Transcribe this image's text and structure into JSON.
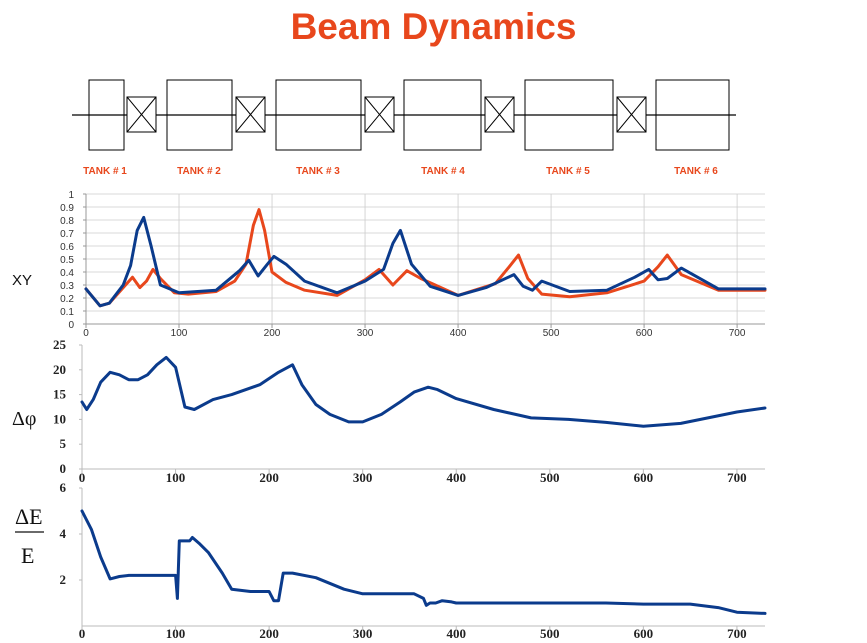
{
  "title": "Beam Dynamics",
  "colors": {
    "title": "#e8471c",
    "red": "#e8471c",
    "blue": "#0b3b8c",
    "grid": "#cccccc"
  },
  "tank_labels": [
    "TANK # 1",
    "TANK # 2",
    "TANK # 3",
    "TANK # 4",
    "TANK # 5",
    "TANK # 6"
  ],
  "chart_data": [
    {
      "type": "line",
      "ylabel": "XY",
      "xlim": [
        0,
        730
      ],
      "ylim": [
        0,
        1
      ],
      "grid": true,
      "xticks": [
        0,
        100,
        200,
        300,
        400,
        500,
        600,
        700
      ],
      "yticks": [
        0,
        0.1,
        0.2,
        0.3,
        0.4,
        0.5,
        0.6,
        0.7,
        0.8,
        0.9,
        1
      ],
      "series": [
        {
          "color": "red",
          "x": [
            0,
            15,
            25,
            40,
            50,
            58,
            65,
            72,
            80,
            95,
            110,
            140,
            160,
            172,
            180,
            186,
            192,
            200,
            215,
            235,
            270,
            300,
            315,
            330,
            345,
            360,
            400,
            440,
            455,
            465,
            475,
            490,
            520,
            560,
            600,
            615,
            625,
            640,
            680,
            730
          ],
          "y": [
            0.27,
            0.14,
            0.16,
            0.28,
            0.36,
            0.28,
            0.33,
            0.42,
            0.35,
            0.24,
            0.23,
            0.25,
            0.33,
            0.46,
            0.76,
            0.88,
            0.72,
            0.4,
            0.32,
            0.26,
            0.22,
            0.34,
            0.42,
            0.3,
            0.41,
            0.35,
            0.22,
            0.31,
            0.44,
            0.53,
            0.35,
            0.23,
            0.21,
            0.24,
            0.33,
            0.44,
            0.53,
            0.38,
            0.26,
            0.26
          ]
        },
        {
          "color": "blue",
          "x": [
            0,
            15,
            25,
            40,
            48,
            55,
            62,
            70,
            80,
            100,
            140,
            165,
            175,
            185,
            195,
            202,
            215,
            235,
            270,
            300,
            320,
            330,
            338,
            350,
            370,
            400,
            430,
            460,
            470,
            480,
            490,
            520,
            560,
            590,
            605,
            615,
            625,
            640,
            680,
            730
          ],
          "y": [
            0.27,
            0.14,
            0.16,
            0.3,
            0.45,
            0.72,
            0.82,
            0.6,
            0.3,
            0.24,
            0.26,
            0.41,
            0.49,
            0.37,
            0.46,
            0.52,
            0.46,
            0.33,
            0.24,
            0.33,
            0.42,
            0.62,
            0.72,
            0.46,
            0.29,
            0.22,
            0.28,
            0.38,
            0.29,
            0.26,
            0.33,
            0.25,
            0.26,
            0.36,
            0.42,
            0.34,
            0.35,
            0.43,
            0.27,
            0.27
          ]
        }
      ]
    },
    {
      "type": "line",
      "ylabel": "Δφ",
      "xlim": [
        0,
        730
      ],
      "ylim": [
        0,
        25
      ],
      "grid": false,
      "xticks": [
        0,
        100,
        200,
        300,
        400,
        500,
        600,
        700
      ],
      "yticks": [
        0,
        5,
        10,
        15,
        20,
        25
      ],
      "series": [
        {
          "color": "blue",
          "x": [
            0,
            5,
            12,
            20,
            30,
            40,
            50,
            60,
            70,
            80,
            90,
            100,
            110,
            120,
            140,
            160,
            190,
            210,
            225,
            235,
            250,
            265,
            285,
            300,
            320,
            340,
            355,
            370,
            380,
            400,
            440,
            480,
            520,
            560,
            600,
            640,
            700,
            730
          ],
          "y": [
            13.5,
            12,
            14,
            17.5,
            19.5,
            19,
            18,
            18,
            19,
            21,
            22.5,
            20.5,
            12.5,
            12,
            14,
            15,
            17,
            19.5,
            21,
            17,
            13,
            11,
            9.5,
            9.5,
            11,
            13.5,
            15.5,
            16.5,
            16,
            14.2,
            12,
            10.3,
            10,
            9.4,
            8.6,
            9.2,
            11.5,
            12.3
          ]
        }
      ]
    },
    {
      "type": "line",
      "ylabel": "ΔE/E",
      "xlim": [
        0,
        730
      ],
      "ylim": [
        0,
        6
      ],
      "grid": false,
      "xticks": [
        0,
        100,
        200,
        300,
        400,
        500,
        600,
        700
      ],
      "yticks": [
        2,
        4,
        6
      ],
      "series": [
        {
          "color": "blue",
          "x": [
            0,
            10,
            20,
            30,
            40,
            50,
            80,
            100,
            102,
            104,
            110,
            115,
            118,
            125,
            135,
            150,
            160,
            180,
            195,
            200,
            205,
            210,
            215,
            220,
            225,
            250,
            280,
            300,
            330,
            355,
            365,
            368,
            372,
            378,
            385,
            395,
            400,
            480,
            500,
            520,
            560,
            600,
            650,
            680,
            700,
            730
          ],
          "y": [
            5.0,
            4.2,
            3.0,
            2.05,
            2.15,
            2.2,
            2.2,
            2.2,
            1.2,
            3.7,
            3.7,
            3.7,
            3.85,
            3.6,
            3.2,
            2.3,
            1.6,
            1.5,
            1.5,
            1.5,
            1.1,
            1.1,
            2.3,
            2.3,
            2.3,
            2.1,
            1.6,
            1.4,
            1.4,
            1.4,
            1.2,
            0.9,
            1.0,
            1.0,
            1.1,
            1.05,
            1.0,
            1.0,
            1.0,
            1.0,
            1.0,
            0.95,
            0.95,
            0.8,
            0.6,
            0.55
          ]
        }
      ]
    }
  ]
}
